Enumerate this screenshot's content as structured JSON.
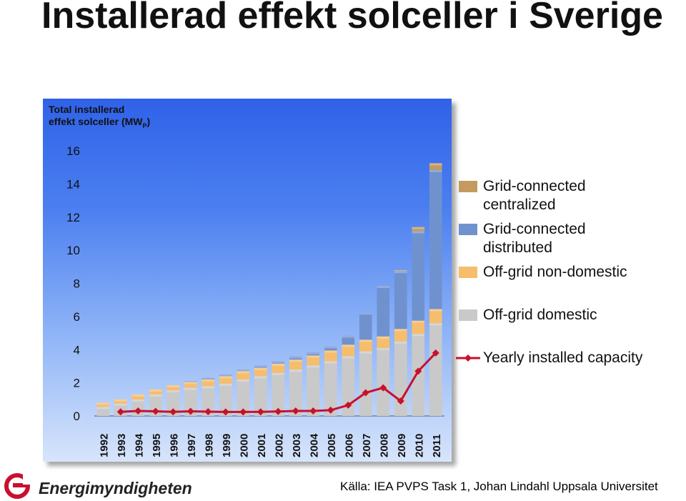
{
  "title": "Installerad effekt solceller i Sverige",
  "source": "Källa: IEA PVPS Task 1, Johan Lindahl Uppsala Universitet",
  "logo": {
    "text": "Energimyndigheten",
    "icon": "energimyndigheten-logo-icon"
  },
  "colors": {
    "grid_centralized": "#c59a5f",
    "grid_distributed": "#6f92cf",
    "offgrid_nondomestic": "#f6bd6c",
    "offgrid_domestic": "#c9c9c9",
    "yearly": "#c8102e"
  },
  "chart_data": {
    "type": "bar",
    "stacked": true,
    "ylabel_line1": "Total installerad",
    "ylabel_line2": "effekt solceller (MW",
    "ylabel_sub": "P",
    "ylabel_end": ")",
    "ylim": [
      0,
      16
    ],
    "yticks": [
      "0",
      "2",
      "4",
      "6",
      "8",
      "10",
      "12",
      "14",
      "16"
    ],
    "categories": [
      "1992",
      "1993",
      "1994",
      "1995",
      "1996",
      "1997",
      "1998",
      "1999",
      "2000",
      "2001",
      "2002",
      "2003",
      "2004",
      "2005",
      "2006",
      "2007",
      "2008",
      "2009",
      "2010",
      "2011"
    ],
    "series": [
      {
        "name": "Off-grid domestic",
        "key": "offgrid_domestic",
        "values": [
          0.55,
          0.75,
          1.0,
          1.3,
          1.55,
          1.7,
          1.8,
          1.95,
          2.2,
          2.4,
          2.6,
          2.8,
          3.05,
          3.3,
          3.6,
          3.9,
          4.1,
          4.5,
          4.95,
          5.6
        ]
      },
      {
        "name": "Off-grid non-domestic",
        "key": "offgrid_nondomestic",
        "values": [
          0.25,
          0.25,
          0.3,
          0.3,
          0.3,
          0.35,
          0.4,
          0.45,
          0.5,
          0.5,
          0.55,
          0.6,
          0.6,
          0.65,
          0.7,
          0.7,
          0.7,
          0.75,
          0.8,
          0.85
        ]
      },
      {
        "name": "Grid-connected distributed",
        "key": "grid_distributed",
        "values": [
          0,
          0,
          0,
          0,
          0,
          0.05,
          0.1,
          0.1,
          0.1,
          0.15,
          0.15,
          0.2,
          0.2,
          0.25,
          0.55,
          1.65,
          3.05,
          3.5,
          5.4,
          8.4
        ]
      },
      {
        "name": "Grid-connected centralized",
        "key": "grid_centralized",
        "values": [
          0,
          0,
          0,
          0,
          0,
          0,
          0,
          0,
          0,
          0,
          0,
          0,
          0,
          0,
          0,
          0,
          0,
          0.05,
          0.25,
          0.4
        ]
      }
    ],
    "line": {
      "name": "Yearly installed capacity",
      "key": "yearly",
      "values": [
        null,
        0.25,
        0.3,
        0.28,
        0.25,
        0.28,
        0.26,
        0.24,
        0.24,
        0.25,
        0.27,
        0.3,
        0.3,
        0.35,
        0.65,
        1.4,
        1.7,
        0.9,
        2.7,
        3.8
      ]
    },
    "legend_order": [
      "grid_centralized",
      "grid_distributed",
      "offgrid_nondomestic",
      "offgrid_domestic",
      "yearly"
    ],
    "legend_labels": {
      "grid_centralized": [
        "Grid-connected",
        "centralized"
      ],
      "grid_distributed": [
        "Grid-connected",
        "distributed"
      ],
      "offgrid_nondomestic": [
        "Off-grid non-domestic"
      ],
      "offgrid_domestic": [
        "Off-grid domestic"
      ],
      "yearly": [
        "Yearly installed capacity"
      ]
    },
    "legend_position": "right"
  }
}
